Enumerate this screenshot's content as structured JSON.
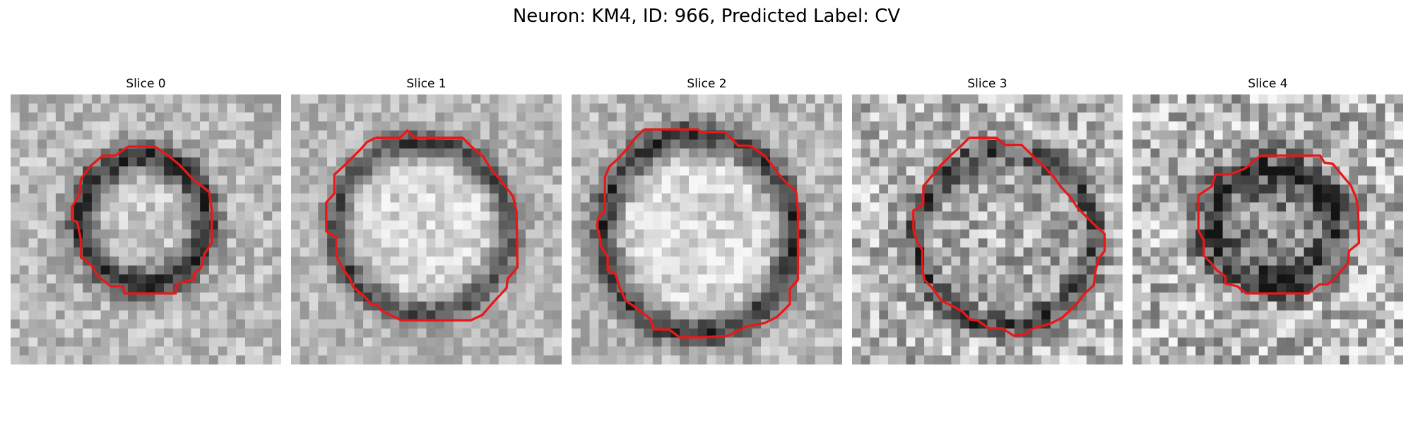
{
  "figure": {
    "title": "Neuron: KM4, ID: 966, Predicted Label: CV"
  },
  "slices": [
    {
      "label": "Slice 0"
    },
    {
      "label": "Slice 1"
    },
    {
      "label": "Slice 2"
    },
    {
      "label": "Slice 3"
    },
    {
      "label": "Slice 4"
    }
  ],
  "colors": {
    "contour": "#e81818",
    "background": "#ffffff"
  }
}
